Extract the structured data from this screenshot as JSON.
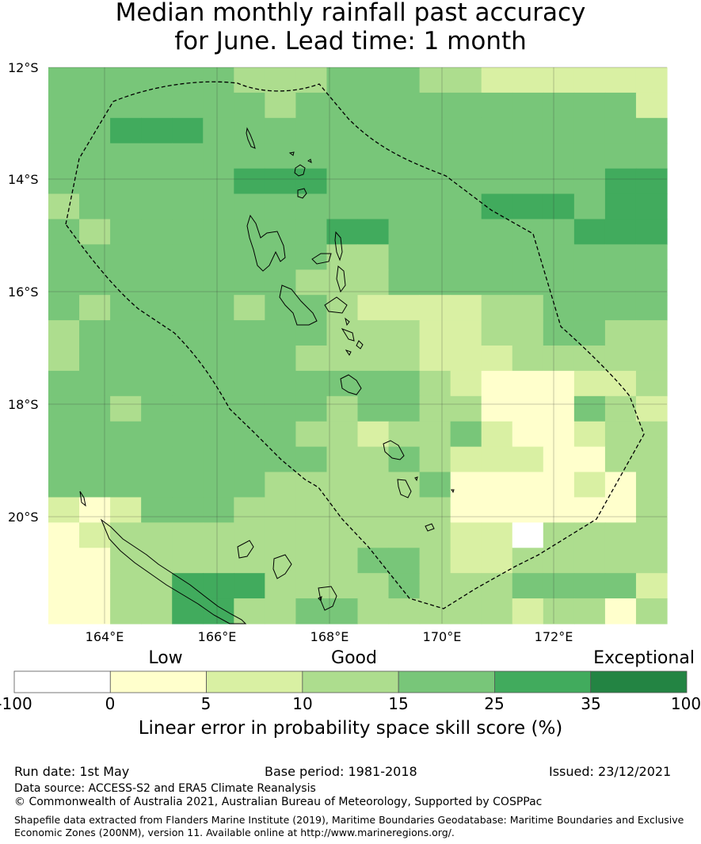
{
  "title_line1": "Median monthly rainfall past accuracy",
  "title_line2": "for June. Lead time: 1 month",
  "lat_labels": [
    "12°S",
    "14°S",
    "16°S",
    "18°S",
    "20°S"
  ],
  "lon_labels": [
    "164°E",
    "166°E",
    "168°E",
    "170°E",
    "172°E"
  ],
  "colorbar": {
    "category_labels": [
      "Low",
      "Good",
      "Exceptional"
    ],
    "ticks": [
      "-100",
      "0",
      "5",
      "10",
      "15",
      "25",
      "35",
      "100"
    ],
    "colors": [
      "#ffffff",
      "#ffffcc",
      "#d9f0a3",
      "#addd8e",
      "#78c679",
      "#41ab5d",
      "#238443"
    ],
    "title": "Linear error in probability space skill score (%)"
  },
  "footer": {
    "run_date": "Run date: 1st May",
    "base_period": "Base period: 1981-2018",
    "issued": "Issued: 23/12/2021",
    "data_source": "Data source: ACCESS-S2 and ERA5 Climate Reanalysis",
    "copyright": "© Commonwealth of Australia 2021, Australian Bureau of Meteorology, Supported by COSPPac",
    "shapefile_line1": "Shapefile data extracted from Flanders Marine Institute (2019), Maritime Boundaries Geodatabase: Maritime Boundaries and Exclusive",
    "shapefile_line2": "Economic Zones (200NM), version 11. Available online at http://www.marineregions.org/."
  },
  "grid_rows": [
    "44444433344433222222",
    "44444443444444444442",
    "44555444444444444444",
    "44444444444444444444",
    "44444455544444444455",
    "34444444444444555455",
    "43444444455444444555",
    "44444444433444444444",
    "44444444333444444444",
    "43444434432222334444",
    "34444444433322334433",
    "34444444333322233333",
    "44444444444432111223",
    "44344444434433111432",
    "44444444332334211233",
    "44444444433432221133",
    "44444443333341111213",
    "21244433333331111113",
    "12333333333332203333",
    "11333333334432233333",
    "11335553333433344442",
    "11335533443333323313"
  ]
}
